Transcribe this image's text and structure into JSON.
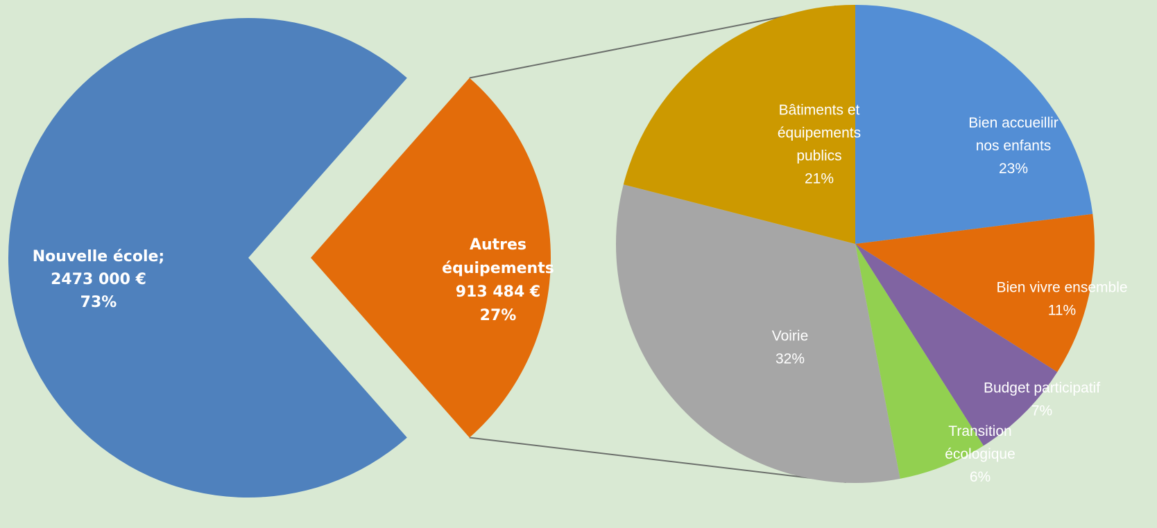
{
  "chart_data": [
    {
      "type": "pie",
      "slices": [
        {
          "name": "Nouvelle école;",
          "amount": "2473 000 €",
          "percent": 73,
          "percent_label": "73%",
          "color": "#4f81bd"
        },
        {
          "name": "Autres équipements",
          "amount": "913 484 €",
          "percent": 27,
          "percent_label": "27%",
          "color": "#e36c0a"
        }
      ]
    },
    {
      "type": "pie",
      "slices": [
        {
          "name": "Bien accueillir nos enfants",
          "percent": 23,
          "percent_label": "23%",
          "color": "#538ed5"
        },
        {
          "name": "Bien vivre ensemble",
          "percent": 11,
          "percent_label": "11%",
          "color": "#e36c0a"
        },
        {
          "name": "Budget participatif",
          "percent": 7,
          "percent_label": "7%",
          "color": "#8064a2"
        },
        {
          "name": "Transition écologique",
          "percent": 6,
          "percent_label": "6%",
          "color": "#92d050"
        },
        {
          "name": "Voirie",
          "percent": 32,
          "percent_label": "32%",
          "color": "#a6a6a6"
        },
        {
          "name": "Bâtiments et équipements publics",
          "percent": 21,
          "percent_label": "21%",
          "color": "#cc9900"
        }
      ]
    }
  ]
}
